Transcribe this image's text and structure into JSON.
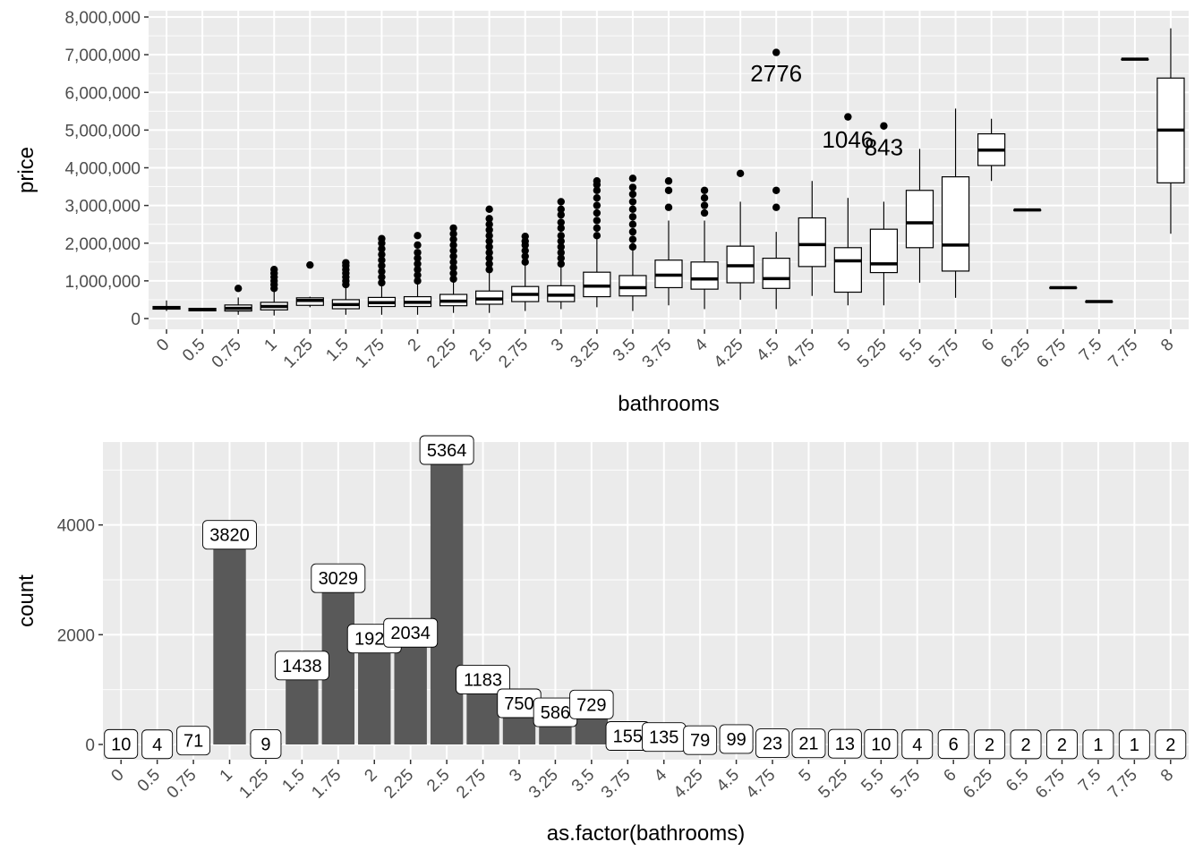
{
  "colors": {
    "panel_bg": "#EBEBEB",
    "grid": "#FFFFFF",
    "bar": "#595959",
    "box_fill": "#FFFFFF",
    "box_line": "#000000",
    "tick_text": "#4D4D4D"
  },
  "chart_data": [
    {
      "type": "boxplot",
      "xlabel": "bathrooms",
      "ylabel": "price",
      "ylim": [
        0,
        8000000
      ],
      "y_ticks": [
        "0",
        "1,000,000",
        "2,000,000",
        "3,000,000",
        "4,000,000",
        "5,000,000",
        "6,000,000",
        "7,000,000",
        "8,000,000"
      ],
      "grid": true,
      "categories": [
        "0",
        "0.5",
        "0.75",
        "1",
        "1.25",
        "1.5",
        "1.75",
        "2",
        "2.25",
        "2.5",
        "2.75",
        "3",
        "3.25",
        "3.5",
        "3.75",
        "4",
        "4.25",
        "4.5",
        "4.75",
        "5",
        "5.25",
        "5.5",
        "5.75",
        "6",
        "6.25",
        "6.75",
        "7.5",
        "7.75",
        "8"
      ],
      "boxes": [
        {
          "x": "0",
          "q1": 250000,
          "median": 290000,
          "q3": 320000,
          "lower": 200000,
          "upper": 480000,
          "outliers": []
        },
        {
          "x": "0.5",
          "q1": 205000,
          "median": 240000,
          "q3": 270000,
          "lower": 200000,
          "upper": 270000,
          "outliers": []
        },
        {
          "x": "0.75",
          "q1": 200000,
          "median": 270000,
          "q3": 360000,
          "lower": 100000,
          "upper": 560000,
          "outliers": [
            800000
          ]
        },
        {
          "x": "1",
          "q1": 230000,
          "median": 320000,
          "q3": 430000,
          "lower": 80000,
          "upper": 720000,
          "outliers": [
            800000,
            900000,
            1000000,
            1100000,
            1200000,
            1300000
          ]
        },
        {
          "x": "1.25",
          "q1": 350000,
          "median": 480000,
          "q3": 550000,
          "lower": 300000,
          "upper": 580000,
          "outliers": [
            1420000
          ]
        },
        {
          "x": "1.5",
          "q1": 260000,
          "median": 370000,
          "q3": 500000,
          "lower": 100000,
          "upper": 860000,
          "outliers": [
            900000,
            1000000,
            1100000,
            1200000,
            1300000,
            1400000,
            1480000
          ]
        },
        {
          "x": "1.75",
          "q1": 320000,
          "median": 420000,
          "q3": 560000,
          "lower": 100000,
          "upper": 900000,
          "outliers": [
            950000,
            1100000,
            1250000,
            1400000,
            1550000,
            1700000,
            1850000,
            2000000,
            2120000
          ]
        },
        {
          "x": "2",
          "q1": 320000,
          "median": 430000,
          "q3": 580000,
          "lower": 100000,
          "upper": 960000,
          "outliers": [
            1000000,
            1150000,
            1300000,
            1450000,
            1600000,
            1750000,
            1950000,
            2200000
          ]
        },
        {
          "x": "2.25",
          "q1": 340000,
          "median": 460000,
          "q3": 640000,
          "lower": 150000,
          "upper": 1000000,
          "outliers": [
            1050000,
            1200000,
            1350000,
            1500000,
            1650000,
            1800000,
            1950000,
            2100000,
            2250000,
            2400000
          ]
        },
        {
          "x": "2.5",
          "q1": 380000,
          "median": 520000,
          "q3": 730000,
          "lower": 150000,
          "upper": 1250000,
          "outliers": [
            1300000,
            1450000,
            1600000,
            1750000,
            1900000,
            2050000,
            2200000,
            2350000,
            2500000,
            2650000,
            2900000
          ]
        },
        {
          "x": "2.75",
          "q1": 450000,
          "median": 640000,
          "q3": 850000,
          "lower": 200000,
          "upper": 1450000,
          "outliers": [
            1500000,
            1650000,
            1800000,
            1950000,
            2050000,
            2180000
          ]
        },
        {
          "x": "3",
          "q1": 450000,
          "median": 620000,
          "q3": 870000,
          "lower": 250000,
          "upper": 1400000,
          "outliers": [
            1450000,
            1600000,
            1750000,
            1900000,
            2050000,
            2200000,
            2400000,
            2550000,
            2750000,
            2900000,
            3100000
          ]
        },
        {
          "x": "3.25",
          "q1": 580000,
          "median": 860000,
          "q3": 1230000,
          "lower": 300000,
          "upper": 2150000,
          "outliers": [
            2200000,
            2400000,
            2600000,
            2800000,
            3000000,
            3200000,
            3400000,
            3550000,
            3650000
          ]
        },
        {
          "x": "3.5",
          "q1": 600000,
          "median": 820000,
          "q3": 1140000,
          "lower": 200000,
          "upper": 1850000,
          "outliers": [
            1900000,
            2100000,
            2300000,
            2500000,
            2700000,
            2900000,
            3100000,
            3300000,
            3480000,
            3720000
          ]
        },
        {
          "x": "3.75",
          "q1": 820000,
          "median": 1150000,
          "q3": 1550000,
          "lower": 350000,
          "upper": 2600000,
          "outliers": [
            2950000,
            3400000,
            3650000
          ]
        },
        {
          "x": "4",
          "q1": 780000,
          "median": 1050000,
          "q3": 1500000,
          "lower": 250000,
          "upper": 2600000,
          "outliers": [
            2800000,
            3000000,
            3200000,
            3400000
          ]
        },
        {
          "x": "4.25",
          "q1": 950000,
          "median": 1400000,
          "q3": 1920000,
          "lower": 500000,
          "upper": 3100000,
          "outliers": [
            3850000
          ]
        },
        {
          "x": "4.5",
          "q1": 800000,
          "median": 1060000,
          "q3": 1600000,
          "lower": 250000,
          "upper": 2300000,
          "outliers": [
            2950000,
            3400000,
            7060000
          ]
        },
        {
          "x": "4.75",
          "q1": 1380000,
          "median": 1960000,
          "q3": 2670000,
          "lower": 600000,
          "upper": 3650000,
          "outliers": []
        },
        {
          "x": "5",
          "q1": 700000,
          "median": 1530000,
          "q3": 1880000,
          "lower": 350000,
          "upper": 3200000,
          "outliers": [
            5350000
          ]
        },
        {
          "x": "5.25",
          "q1": 1220000,
          "median": 1450000,
          "q3": 2370000,
          "lower": 350000,
          "upper": 3100000,
          "outliers": [
            5110000
          ]
        },
        {
          "x": "5.5",
          "q1": 1880000,
          "median": 2540000,
          "q3": 3400000,
          "lower": 950000,
          "upper": 4500000,
          "outliers": []
        },
        {
          "x": "5.75",
          "q1": 1260000,
          "median": 1950000,
          "q3": 3760000,
          "lower": 550000,
          "upper": 5570000,
          "outliers": []
        },
        {
          "x": "6",
          "q1": 4060000,
          "median": 4470000,
          "q3": 4900000,
          "lower": 3650000,
          "upper": 5300000,
          "outliers": []
        },
        {
          "x": "6.25",
          "q1": 2880000,
          "median": 2880000,
          "q3": 2880000,
          "lower": 2880000,
          "upper": 2880000,
          "outliers": []
        },
        {
          "x": "6.75",
          "q1": 820000,
          "median": 820000,
          "q3": 820000,
          "lower": 820000,
          "upper": 820000,
          "outliers": []
        },
        {
          "x": "7.5",
          "q1": 450000,
          "median": 450000,
          "q3": 450000,
          "lower": 450000,
          "upper": 450000,
          "outliers": []
        },
        {
          "x": "7.75",
          "q1": 6880000,
          "median": 6880000,
          "q3": 6880000,
          "lower": 6880000,
          "upper": 6880000,
          "outliers": []
        },
        {
          "x": "8",
          "q1": 3600000,
          "median": 5000000,
          "q3": 6380000,
          "lower": 2250000,
          "upper": 7700000,
          "outliers": []
        }
      ],
      "annotations": [
        {
          "text": "2776",
          "x": "4.5",
          "y": 6450000
        },
        {
          "text": "1046",
          "x": "5",
          "y": 4700000
        },
        {
          "text": "843",
          "x": "5.25",
          "y": 4500000
        }
      ]
    },
    {
      "type": "bar",
      "xlabel": "as.factor(bathrooms)",
      "ylabel": "count",
      "ylim": [
        0,
        5364
      ],
      "y_ticks": [
        "0",
        "2000",
        "4000"
      ],
      "grid": true,
      "categories": [
        "0",
        "0.5",
        "0.75",
        "1",
        "1.25",
        "1.5",
        "1.75",
        "2",
        "2.25",
        "2.5",
        "2.75",
        "3",
        "3.25",
        "3.5",
        "3.75",
        "4",
        "4.25",
        "4.5",
        "4.75",
        "5",
        "5.25",
        "5.5",
        "5.75",
        "6",
        "6.25",
        "6.5",
        "6.75",
        "7.5",
        "7.75",
        "8"
      ],
      "values": [
        10,
        4,
        71,
        3820,
        9,
        1438,
        3029,
        1929,
        2034,
        5364,
        1183,
        750,
        586,
        729,
        155,
        135,
        79,
        99,
        23,
        21,
        13,
        10,
        4,
        6,
        2,
        2,
        2,
        1,
        1,
        2
      ],
      "labels": [
        "10",
        "4",
        "71",
        "3820",
        "9",
        "1438",
        "3029",
        "1929",
        "2034",
        "5364",
        "1183",
        "750",
        "586",
        "729",
        "155",
        "135",
        "79",
        "99",
        "23",
        "21",
        "13",
        "10",
        "4",
        "6",
        "2",
        "2",
        "2",
        "1",
        "1",
        "2"
      ]
    }
  ]
}
